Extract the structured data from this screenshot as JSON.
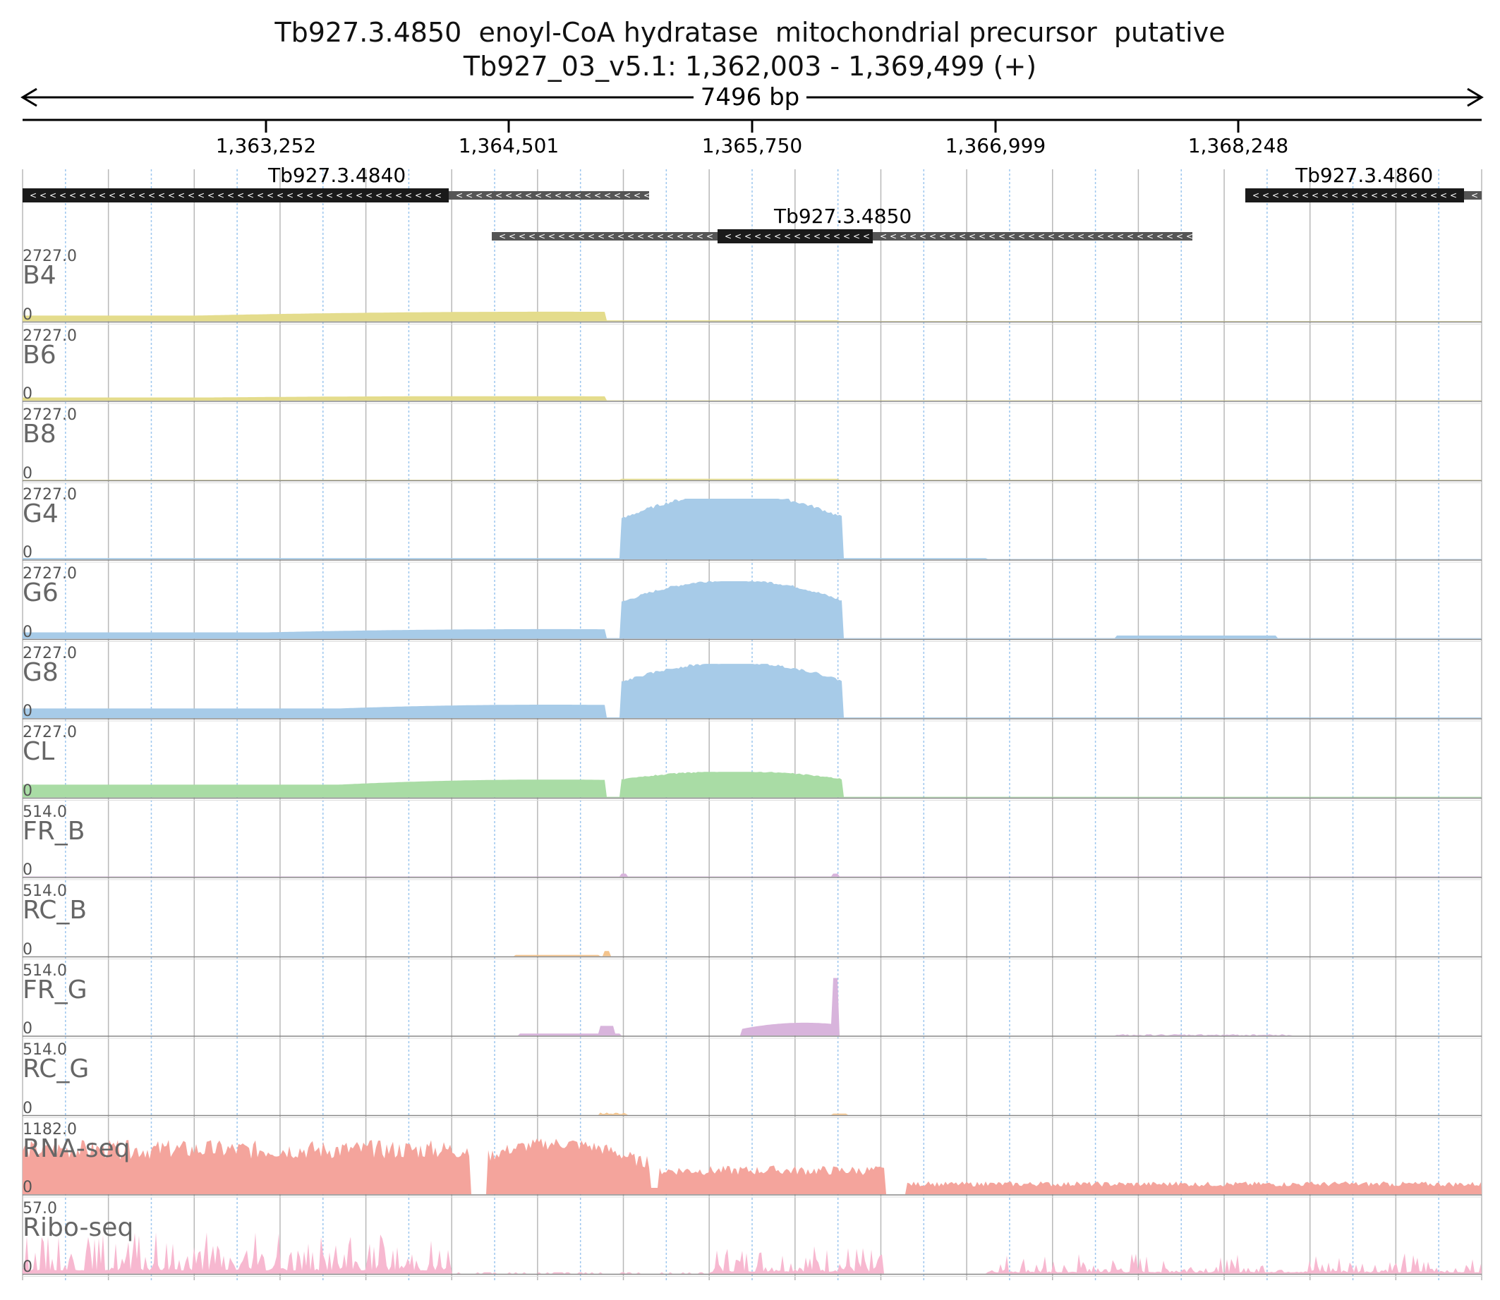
{
  "header": {
    "title_line1": "Tb927.3.4850  enoyl-CoA hydratase  mitochondrial precursor  putative",
    "title_line2": "Tb927_03_v5.1: 1,362,003 - 1,369,499 (+)",
    "span_label": "7496 bp"
  },
  "ruler": {
    "ticks": [
      "1,363,252",
      "1,364,501",
      "1,365,750",
      "1,366,999",
      "1,368,248"
    ]
  },
  "genes": [
    {
      "name": "Tb927.3.4840",
      "strand": "-"
    },
    {
      "name": "Tb927.3.4850",
      "strand": "-"
    },
    {
      "name": "Tb927.3.4860",
      "strand": "-"
    }
  ],
  "tracks": [
    {
      "name": "B4",
      "max": "2727.0",
      "zero": "0",
      "color": "#e4dc8c"
    },
    {
      "name": "B6",
      "max": "2727.0",
      "zero": "0",
      "color": "#e4dc8c"
    },
    {
      "name": "B8",
      "max": "2727.0",
      "zero": "0",
      "color": "#e4dc8c"
    },
    {
      "name": "G4",
      "max": "2727.0",
      "zero": "0",
      "color": "#a7cbe8"
    },
    {
      "name": "G6",
      "max": "2727.0",
      "zero": "0",
      "color": "#a7cbe8"
    },
    {
      "name": "G8",
      "max": "2727.0",
      "zero": "0",
      "color": "#a7cbe8"
    },
    {
      "name": "CL",
      "max": "2727.0",
      "zero": "0",
      "color": "#a9dca5"
    },
    {
      "name": "FR_B",
      "max": "514.0",
      "zero": "0",
      "color": "#d8b4dc"
    },
    {
      "name": "RC_B",
      "max": "514.0",
      "zero": "0",
      "color": "#f4c48c"
    },
    {
      "name": "FR_G",
      "max": "514.0",
      "zero": "0",
      "color": "#d8b4dc"
    },
    {
      "name": "RC_G",
      "max": "514.0",
      "zero": "0",
      "color": "#f4c48c"
    },
    {
      "name": "RNA-seq",
      "max": "1182.0",
      "zero": "0",
      "color": "#f4a49c"
    },
    {
      "name": "Ribo-seq",
      "max": "57.0",
      "zero": "0",
      "color": "#f7b8d0"
    }
  ]
}
